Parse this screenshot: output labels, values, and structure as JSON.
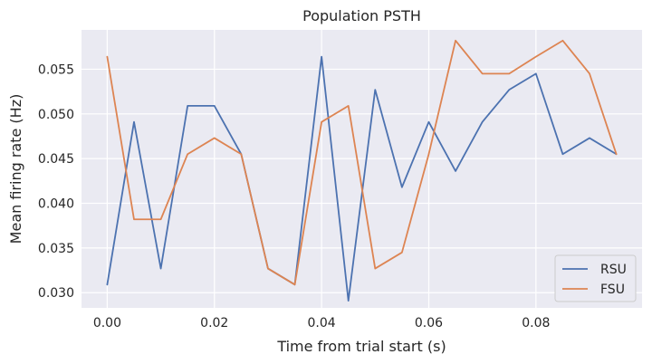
{
  "chart_data": {
    "type": "line",
    "title": "Population PSTH",
    "xlabel": "Time from trial start (s)",
    "ylabel": "Mean firing rate (Hz)",
    "xlim": [
      -0.0048,
      0.0998
    ],
    "ylim": [
      0.0283,
      0.0594
    ],
    "x_ticks": [
      0.0,
      0.02,
      0.04,
      0.06,
      0.08
    ],
    "x_tick_labels": [
      "0.00",
      "0.02",
      "0.04",
      "0.06",
      "0.08"
    ],
    "y_ticks": [
      0.03,
      0.035,
      0.04,
      0.045,
      0.05,
      0.055
    ],
    "y_tick_labels": [
      "0.030",
      "0.035",
      "0.040",
      "0.045",
      "0.050",
      "0.055"
    ],
    "grid": true,
    "legend_position": "lower-right",
    "x": [
      0.0,
      0.005,
      0.01,
      0.015,
      0.02,
      0.025,
      0.03,
      0.035,
      0.04,
      0.045,
      0.05,
      0.055,
      0.06,
      0.065,
      0.07,
      0.075,
      0.08,
      0.085,
      0.09,
      0.095
    ],
    "series": [
      {
        "name": "RSU",
        "color": "#4c72b0",
        "values": [
          0.0309,
          0.0491,
          0.0327,
          0.0509,
          0.0509,
          0.0455,
          0.0327,
          0.0309,
          0.0564,
          0.0291,
          0.0527,
          0.0418,
          0.0491,
          0.0436,
          0.0491,
          0.0527,
          0.0545,
          0.0455,
          0.0473,
          0.0455
        ]
      },
      {
        "name": "FSU",
        "color": "#dd8452",
        "values": [
          0.0564,
          0.0382,
          0.0382,
          0.0455,
          0.0473,
          0.0455,
          0.0327,
          0.0309,
          0.0491,
          0.0509,
          0.0327,
          0.0345,
          0.0455,
          0.0582,
          0.0545,
          0.0545,
          0.0564,
          0.0582,
          0.0545,
          0.0455
        ]
      }
    ]
  }
}
